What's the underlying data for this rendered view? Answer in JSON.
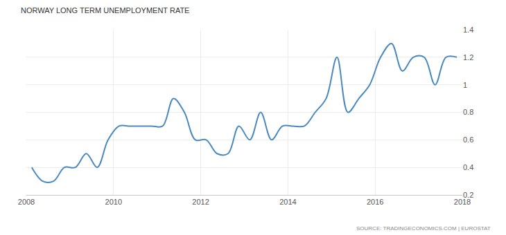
{
  "chart_data": {
    "type": "line",
    "title": "NORWAY LONG TERM UNEMPLOYMENT RATE",
    "annotations": [
      "SOURCE: TRADINGECONOMICS.COM | EUROSTAT"
    ],
    "x": [
      2008.125,
      2008.375,
      2008.625,
      2008.875,
      2009.125,
      2009.375,
      2009.625,
      2009.875,
      2010.125,
      2010.375,
      2010.625,
      2010.875,
      2011.125,
      2011.375,
      2011.625,
      2011.875,
      2012.125,
      2012.375,
      2012.625,
      2012.875,
      2013.125,
      2013.375,
      2013.625,
      2013.875,
      2014.125,
      2014.375,
      2014.625,
      2014.875,
      2015.125,
      2015.375,
      2015.625,
      2015.875,
      2016.125,
      2016.375,
      2016.625,
      2016.875,
      2017.125,
      2017.375,
      2017.625,
      2017.875
    ],
    "values": [
      0.4,
      0.3,
      0.3,
      0.4,
      0.4,
      0.5,
      0.4,
      0.6,
      0.7,
      0.7,
      0.7,
      0.7,
      0.7,
      0.9,
      0.8,
      0.6,
      0.6,
      0.5,
      0.5,
      0.7,
      0.6,
      0.8,
      0.6,
      0.7,
      0.7,
      0.7,
      0.8,
      0.9,
      1.2,
      0.8,
      0.9,
      1.0,
      1.2,
      1.3,
      1.1,
      1.2,
      1.2,
      1.0,
      1.2,
      1.2
    ],
    "color": "#4a89bf",
    "line_style": "smooth",
    "xlim": [
      2008,
      2018
    ],
    "xticks": [
      2008,
      2010,
      2012,
      2014,
      2016,
      2018
    ],
    "ylim": [
      0.2,
      1.4
    ],
    "yticks": [
      0.2,
      0.4,
      0.6,
      0.8,
      1,
      1.2,
      1.4
    ],
    "grid": true
  }
}
